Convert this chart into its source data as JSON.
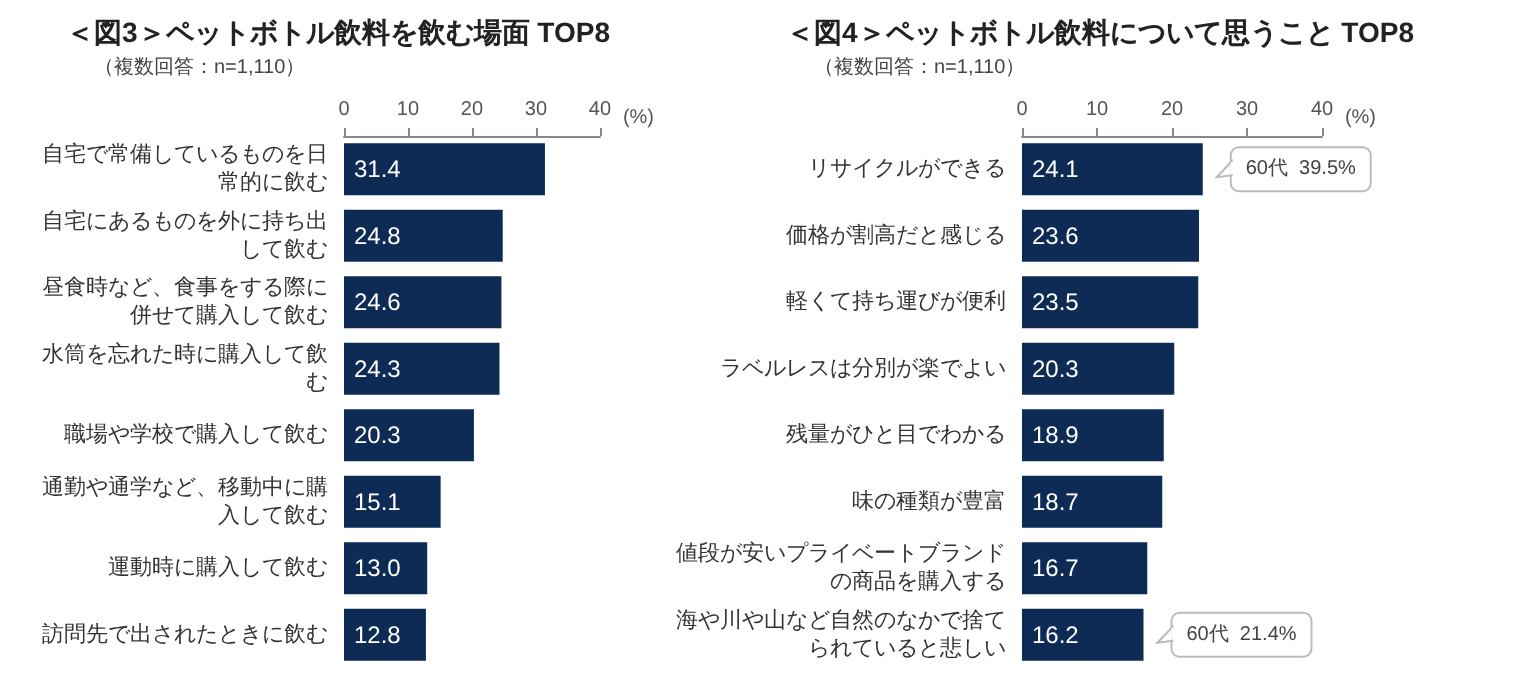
{
  "chart_data": [
    {
      "type": "bar",
      "orientation": "horizontal",
      "title": "＜図3＞ペットボトル飲料を飲む場面 TOP8",
      "subtitle": "（複数回答：n=1,110）",
      "xlabel": "(%)",
      "categories": [
        "自宅で常備しているものを日常的に飲む",
        "自宅にあるものを外に持ち出して飲む",
        "昼食時など、食事をする際に併せて購入して飲む",
        "水筒を忘れた時に購入して飲む",
        "職場や学校で購入して飲む",
        "通勤や通学など、移動中に購入して飲む",
        "運動時に購入して飲む",
        "訪問先で出されたときに飲む"
      ],
      "values": [
        31.4,
        24.8,
        24.6,
        24.3,
        20.3,
        15.1,
        13.0,
        12.8
      ],
      "color": "#0e2b56",
      "value_labels": [
        "31.4",
        "24.8",
        "24.6",
        "24.3",
        "20.3",
        "15.1",
        "13.0",
        "12.8"
      ],
      "xlim": [
        0,
        40
      ],
      "xticks": [
        0,
        10,
        20,
        30,
        40
      ],
      "grid": false
    },
    {
      "type": "bar",
      "orientation": "horizontal",
      "title": "＜図4＞ペットボトル飲料について思うこと TOP8",
      "subtitle": "（複数回答：n=1,110）",
      "xlabel": "(%)",
      "categories": [
        "リサイクルができる",
        "価格が割高だと感じる",
        "軽くて持ち運びが便利",
        "ラベルレスは分別が楽でよい",
        "残量がひと目でわかる",
        "味の種類が豊富",
        "値段が安いプライベートブランドの商品を購入する",
        "海や川や山など自然のなかで捨てられていると悲しい"
      ],
      "values": [
        24.1,
        23.6,
        23.5,
        20.3,
        18.9,
        18.7,
        16.7,
        16.2
      ],
      "color": "#0e2b56",
      "value_labels": [
        "24.1",
        "23.6",
        "23.5",
        "20.3",
        "18.9",
        "18.7",
        "16.7",
        "16.2"
      ],
      "xlim": [
        0,
        40
      ],
      "xticks": [
        0,
        10,
        20,
        30,
        40
      ],
      "grid": false,
      "annotations": [
        {
          "text": "60代  39.5%",
          "x": 24.1,
          "y": "リサイクルができる"
        },
        {
          "text": "60代  21.4%",
          "x": 16.2,
          "y": "海や川や山など自然のなかで捨てられていると悲しい"
        }
      ]
    }
  ]
}
